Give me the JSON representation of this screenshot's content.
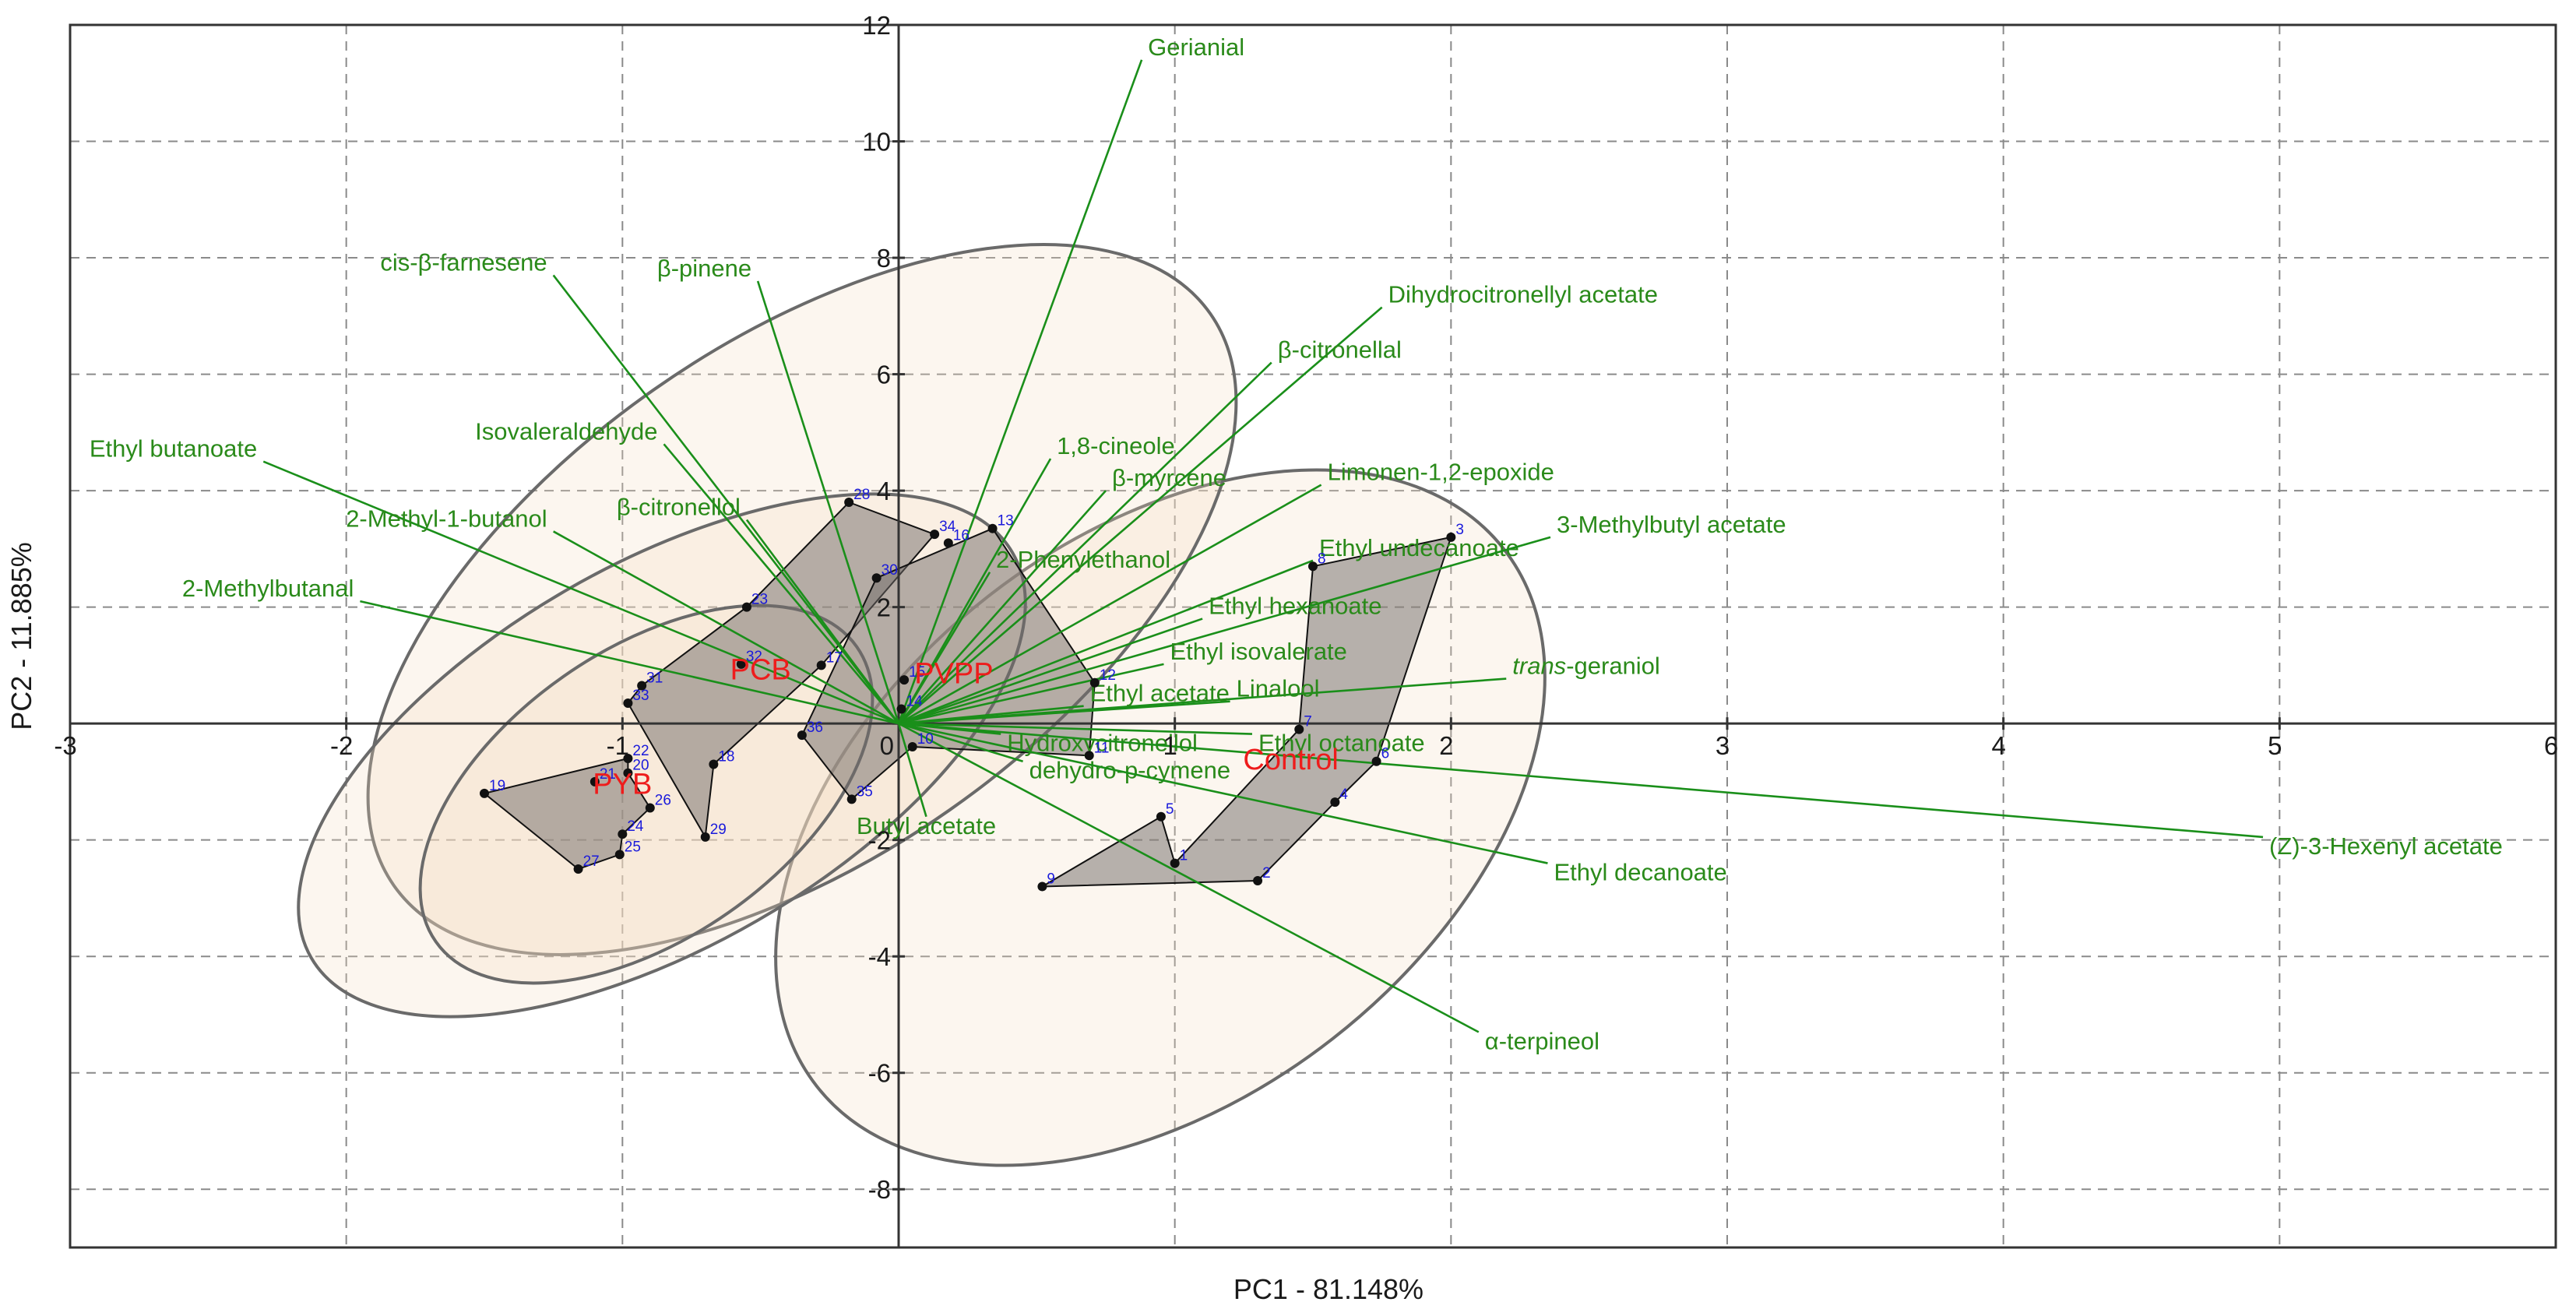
{
  "chart_data": {
    "type": "scatter",
    "subtype": "PCA biplot",
    "xlabel": "PC1 - 81.148%",
    "ylabel": "PC2 - 11.885%",
    "xlim": [
      -3,
      6
    ],
    "ylim": [
      -9,
      12
    ],
    "xticks": [
      -3,
      -2,
      -1,
      0,
      1,
      2,
      3,
      4,
      5,
      6
    ],
    "yticks": [
      -8,
      -6,
      -4,
      -2,
      0,
      2,
      4,
      6,
      8,
      10,
      12
    ],
    "grid": true,
    "variables": [
      {
        "name": "Gerianial",
        "x": 0.88,
        "y": 11.4
      },
      {
        "name": "cis-β-farnesene",
        "x": -1.25,
        "y": 7.7
      },
      {
        "name": "β-pinene",
        "x": -0.51,
        "y": 7.6
      },
      {
        "name": "Dihydrocitronellyl acetate",
        "x": 1.75,
        "y": 7.15
      },
      {
        "name": "β-citronellal",
        "x": 1.35,
        "y": 6.2
      },
      {
        "name": "Isovaleraldehyde",
        "x": -0.85,
        "y": 4.8
      },
      {
        "name": "Ethyl butanoate",
        "x": -2.3,
        "y": 4.5
      },
      {
        "name": "1,8-cineole",
        "x": 0.55,
        "y": 4.55
      },
      {
        "name": "β-myrcene",
        "x": 0.75,
        "y": 4.0
      },
      {
        "name": "Limonen-1,2-epoxide",
        "x": 1.53,
        "y": 4.1
      },
      {
        "name": "2-Methyl-1-butanol",
        "x": -1.25,
        "y": 3.3
      },
      {
        "name": "β-citronellol",
        "x": -0.55,
        "y": 3.5
      },
      {
        "name": "Ethyl undecanoate",
        "x": 1.5,
        "y": 2.8
      },
      {
        "name": "3-Methylbutyl acetate",
        "x": 2.36,
        "y": 3.2
      },
      {
        "name": "2-Methylbutanal",
        "x": -1.95,
        "y": 2.1
      },
      {
        "name": "2-Phenylethanol",
        "x": 0.33,
        "y": 2.6
      },
      {
        "name": "Ethyl hexanoate",
        "x": 1.1,
        "y": 1.8
      },
      {
        "name": "Ethyl isovalerate",
        "x": 0.96,
        "y": 1.02
      },
      {
        "name": "trans-geraniol",
        "x": 2.2,
        "y": 0.77
      },
      {
        "name": "Ethyl acetate",
        "x": 0.67,
        "y": 0.3
      },
      {
        "name": "Linalool",
        "x": 1.2,
        "y": 0.38
      },
      {
        "name": "Hydroxycitronellol",
        "x": 0.37,
        "y": -0.18
      },
      {
        "name": "Ethyl octanoate",
        "x": 1.28,
        "y": -0.18
      },
      {
        "name": "dehydro-p-cymene",
        "x": 0.45,
        "y": -0.65
      },
      {
        "name": "(Z)-3-Hexenyl acetate",
        "x": 4.94,
        "y": -1.95
      },
      {
        "name": "Ethyl decanoate",
        "x": 2.35,
        "y": -2.4
      },
      {
        "name": "Butyl acetate",
        "x": 0.1,
        "y": -1.6
      },
      {
        "name": "α-terpineol",
        "x": 2.1,
        "y": -5.3
      }
    ],
    "observations": [
      {
        "id": "1",
        "x": 1.0,
        "y": -2.4
      },
      {
        "id": "2",
        "x": 1.3,
        "y": -2.7
      },
      {
        "id": "3",
        "x": 2.0,
        "y": 3.2
      },
      {
        "id": "4",
        "x": 1.58,
        "y": -1.35
      },
      {
        "id": "5",
        "x": 0.95,
        "y": -1.6
      },
      {
        "id": "6",
        "x": 1.73,
        "y": -0.65
      },
      {
        "id": "7",
        "x": 1.45,
        "y": -0.1
      },
      {
        "id": "8",
        "x": 1.5,
        "y": 2.7
      },
      {
        "id": "9",
        "x": 0.52,
        "y": -2.8
      },
      {
        "id": "10",
        "x": 0.05,
        "y": -0.4
      },
      {
        "id": "11",
        "x": 0.69,
        "y": -0.55
      },
      {
        "id": "12",
        "x": 0.71,
        "y": 0.7
      },
      {
        "id": "13",
        "x": 0.34,
        "y": 3.35
      },
      {
        "id": "14",
        "x": 0.01,
        "y": 0.25
      },
      {
        "id": "15",
        "x": 0.02,
        "y": 0.75
      },
      {
        "id": "16",
        "x": 0.18,
        "y": 3.1
      },
      {
        "id": "17",
        "x": -0.28,
        "y": 1.0
      },
      {
        "id": "18",
        "x": -0.67,
        "y": -0.7
      },
      {
        "id": "19",
        "x": -1.5,
        "y": -1.2
      },
      {
        "id": "20",
        "x": -0.98,
        "y": -0.85
      },
      {
        "id": "21",
        "x": -1.1,
        "y": -1.0
      },
      {
        "id": "22",
        "x": -0.98,
        "y": -0.6
      },
      {
        "id": "23",
        "x": -0.55,
        "y": 2.0
      },
      {
        "id": "24",
        "x": -1.0,
        "y": -1.9
      },
      {
        "id": "25",
        "x": -1.01,
        "y": -2.25
      },
      {
        "id": "26",
        "x": -0.9,
        "y": -1.45
      },
      {
        "id": "27",
        "x": -1.16,
        "y": -2.5
      },
      {
        "id": "28",
        "x": -0.18,
        "y": 3.8
      },
      {
        "id": "29",
        "x": -0.7,
        "y": -1.95
      },
      {
        "id": "30",
        "x": -0.08,
        "y": 2.5
      },
      {
        "id": "31",
        "x": -0.93,
        "y": 0.65
      },
      {
        "id": "32",
        "x": -0.57,
        "y": 1.02
      },
      {
        "id": "33",
        "x": -0.98,
        "y": 0.35
      },
      {
        "id": "34",
        "x": 0.13,
        "y": 3.25
      },
      {
        "id": "35",
        "x": -0.17,
        "y": -1.3
      },
      {
        "id": "36",
        "x": -0.35,
        "y": -0.2
      }
    ],
    "groups": [
      {
        "name": "PCB",
        "label_x": -0.5,
        "label_y": 0.92,
        "hull": [
          "28",
          "34",
          "17",
          "18",
          "29",
          "33",
          "31",
          "23"
        ]
      },
      {
        "name": "PVPP",
        "label_x": 0.2,
        "label_y": 0.85,
        "hull": [
          "13",
          "12",
          "11",
          "10",
          "35",
          "36",
          "30"
        ]
      },
      {
        "name": "PYB",
        "label_x": -1.0,
        "label_y": -1.05,
        "hull": [
          "22",
          "19",
          "27",
          "25",
          "24",
          "26",
          "20"
        ]
      },
      {
        "name": "Control",
        "label_x": 1.42,
        "label_y": -0.63,
        "hull": [
          "8",
          "3",
          "6",
          "4",
          "2",
          "9",
          "5",
          "1",
          "7"
        ]
      }
    ]
  }
}
